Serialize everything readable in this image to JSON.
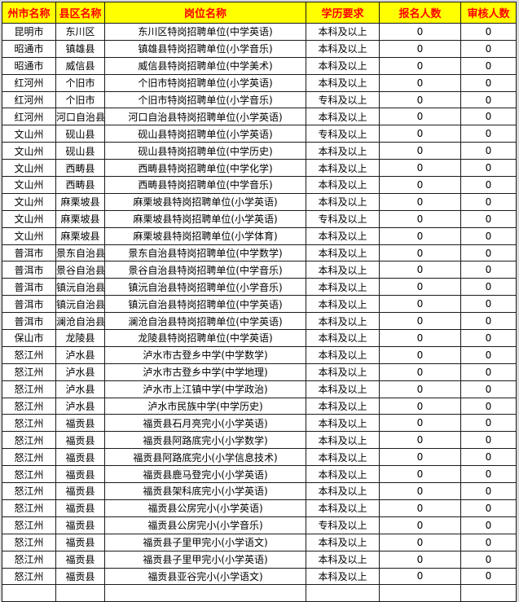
{
  "chart_data": {
    "type": "table",
    "columns": [
      "州市名称",
      "县区名称",
      "岗位名称",
      "学历要求",
      "报名人数",
      "审核人数"
    ],
    "rows": [
      [
        "昆明市",
        "东川区",
        "东川区特岗招聘单位(中学英语)",
        "本科及以上",
        "0",
        "0"
      ],
      [
        "昭通市",
        "镇雄县",
        "镇雄县特岗招聘单位(小学音乐)",
        "本科及以上",
        "0",
        "0"
      ],
      [
        "昭通市",
        "威信县",
        "威信县特岗招聘单位(中学美术)",
        "本科及以上",
        "0",
        "0"
      ],
      [
        "红河州",
        "个旧市",
        "个旧市特岗招聘单位(小学英语)",
        "本科及以上",
        "0",
        "0"
      ],
      [
        "红河州",
        "个旧市",
        "个旧市特岗招聘单位(小学音乐)",
        "专科及以上",
        "0",
        "0"
      ],
      [
        "红河州",
        "河口自治县",
        "河口自治县特岗招聘单位(小学英语)",
        "本科及以上",
        "0",
        "0"
      ],
      [
        "文山州",
        "砚山县",
        "砚山县特岗招聘单位(小学英语)",
        "专科及以上",
        "0",
        "0"
      ],
      [
        "文山州",
        "砚山县",
        "砚山县特岗招聘单位(中学历史)",
        "本科及以上",
        "0",
        "0"
      ],
      [
        "文山州",
        "西畴县",
        "西畴县特岗招聘单位(中学化学)",
        "本科及以上",
        "0",
        "0"
      ],
      [
        "文山州",
        "西畴县",
        "西畴县特岗招聘单位(中学音乐)",
        "本科及以上",
        "0",
        "0"
      ],
      [
        "文山州",
        "麻栗坡县",
        "麻栗坡县特岗招聘单位(小学英语)",
        "本科及以上",
        "0",
        "0"
      ],
      [
        "文山州",
        "麻栗坡县",
        "麻栗坡县特岗招聘单位(小学英语)",
        "专科及以上",
        "0",
        "0"
      ],
      [
        "文山州",
        "麻栗坡县",
        "麻栗坡县特岗招聘单位(小学体育)",
        "本科及以上",
        "0",
        "0"
      ],
      [
        "普洱市",
        "景东自治县",
        "景东自治县特岗招聘单位(中学数学)",
        "本科及以上",
        "0",
        "0"
      ],
      [
        "普洱市",
        "景谷自治县",
        "景谷自治县特岗招聘单位(中学音乐)",
        "本科及以上",
        "0",
        "0"
      ],
      [
        "普洱市",
        "镇沅自治县",
        "镇沅自治县特岗招聘单位(小学音乐)",
        "本科及以上",
        "0",
        "0"
      ],
      [
        "普洱市",
        "镇沅自治县",
        "镇沅自治县特岗招聘单位(中学英语)",
        "本科及以上",
        "0",
        "0"
      ],
      [
        "普洱市",
        "澜沧自治县",
        "澜沧自治县特岗招聘单位(中学英语)",
        "本科及以上",
        "0",
        "0"
      ],
      [
        "保山市",
        "龙陵县",
        "龙陵县特岗招聘单位(中学英语)",
        "本科及以上",
        "0",
        "0"
      ],
      [
        "怒江州",
        "泸水县",
        "泸水市古登乡中学(中学数学)",
        "本科及以上",
        "0",
        "0"
      ],
      [
        "怒江州",
        "泸水县",
        "泸水市古登乡中学(中学地理)",
        "本科及以上",
        "0",
        "0"
      ],
      [
        "怒江州",
        "泸水县",
        "泸水市上江镇中学(中学政治)",
        "本科及以上",
        "0",
        "0"
      ],
      [
        "怒江州",
        "泸水县",
        "泸水市民族中学(中学历史)",
        "本科及以上",
        "0",
        "0"
      ],
      [
        "怒江州",
        "福贡县",
        "福贡县石月亮完小(小学英语)",
        "本科及以上",
        "0",
        "0"
      ],
      [
        "怒江州",
        "福贡县",
        "福贡县阿路底完小(小学数学)",
        "本科及以上",
        "0",
        "0"
      ],
      [
        "怒江州",
        "福贡县",
        "福贡县阿路底完小(小学信息技术)",
        "本科及以上",
        "0",
        "0"
      ],
      [
        "怒江州",
        "福贡县",
        "福贡县鹿马登完小(小学英语)",
        "本科及以上",
        "0",
        "0"
      ],
      [
        "怒江州",
        "福贡县",
        "福贡县架科底完小(小学英语)",
        "本科及以上",
        "0",
        "0"
      ],
      [
        "怒江州",
        "福贡县",
        "福贡县公房完小(小学英语)",
        "本科及以上",
        "0",
        "0"
      ],
      [
        "怒江州",
        "福贡县",
        "福贡县公房完小(小学音乐)",
        "专科及以上",
        "0",
        "0"
      ],
      [
        "怒江州",
        "福贡县",
        "福贡县子里甲完小(小学语文)",
        "本科及以上",
        "0",
        "0"
      ],
      [
        "怒江州",
        "福贡县",
        "福贡县子里甲完小(小学英语)",
        "本科及以上",
        "0",
        "0"
      ],
      [
        "怒江州",
        "福贡县",
        "福贡县亚谷完小(小学语文)",
        "本科及以上",
        "0",
        "0"
      ]
    ],
    "layout_hints": {
      "header_row": true,
      "grid": true,
      "partial_row_cut_at_bottom": true
    }
  },
  "colors": {
    "header_bg": "#FFFF00",
    "header_text": "#FF0000",
    "body_bg": "#FFFFFF",
    "body_text": "#000000",
    "border": "#1A1A1A",
    "page_bg": "#D9D9D9"
  }
}
